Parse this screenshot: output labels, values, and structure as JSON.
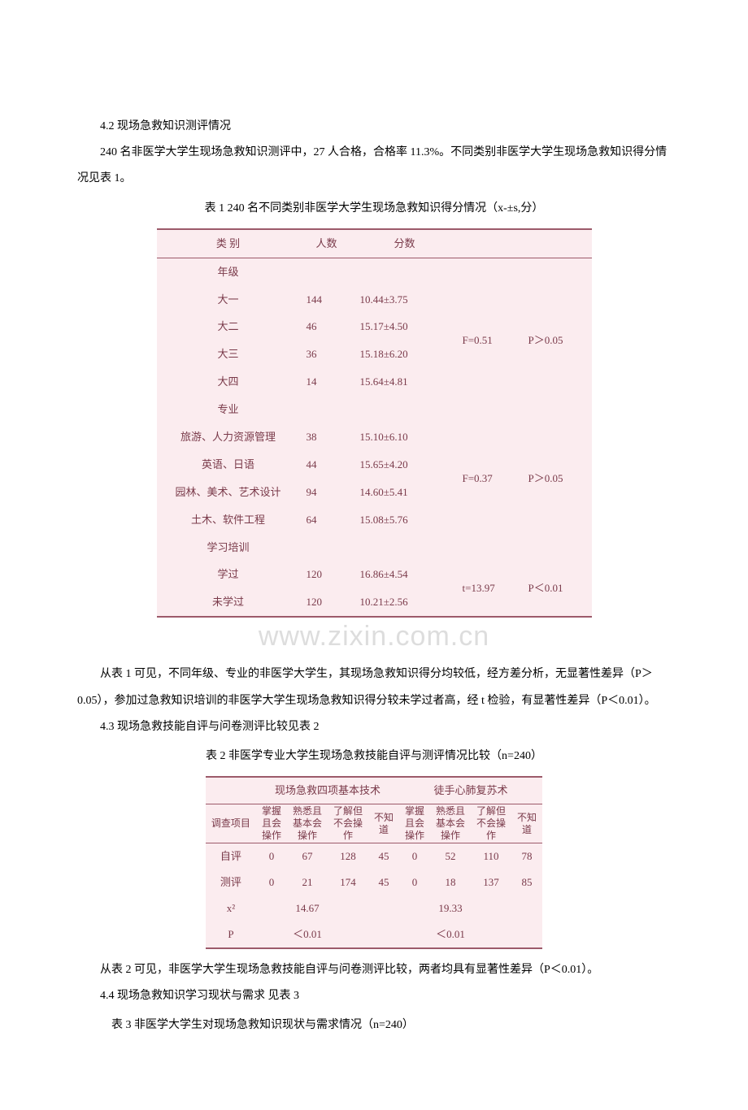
{
  "section42": {
    "heading": "4.2 现场急救知识测评情况",
    "para1": "240 名非医学大学生现场急救知识测评中，27 人合格，合格率 11.3%。不同类别非医学大学生现场急救知识得分情况见表 1。",
    "table1_caption": "表 1  240 名不同类别非医学大学生现场急救知识得分情况（x-±s,分）",
    "table1": {
      "header": {
        "cat": "类  别",
        "count": "人数",
        "score": "分数"
      },
      "groups": [
        {
          "name": "年级",
          "rows": [
            {
              "label": "大一",
              "n": "144",
              "score": "10.44±3.75"
            },
            {
              "label": "大二",
              "n": "46",
              "score": "15.17±4.50"
            },
            {
              "label": "大三",
              "n": "36",
              "score": "15.18±6.20"
            },
            {
              "label": "大四",
              "n": "14",
              "score": "15.64±4.81"
            }
          ],
          "stat": "F=0.51",
          "p": "P＞0.05"
        },
        {
          "name": "专业",
          "rows": [
            {
              "label": "旅游、人力资源管理",
              "n": "38",
              "score": "15.10±6.10"
            },
            {
              "label": "英语、日语",
              "n": "44",
              "score": "15.65±4.20"
            },
            {
              "label": "园林、美术、艺术设计",
              "n": "94",
              "score": "14.60±5.41"
            },
            {
              "label": "土木、软件工程",
              "n": "64",
              "score": "15.08±5.76"
            }
          ],
          "stat": "F=0.37",
          "p": "P＞0.05"
        },
        {
          "name": "学习培训",
          "rows": [
            {
              "label": "学过",
              "n": "120",
              "score": "16.86±4.54"
            },
            {
              "label": "未学过",
              "n": "120",
              "score": "10.21±2.56"
            }
          ],
          "stat": "t=13.97",
          "p": "P＜0.01"
        }
      ]
    },
    "watermark": "www.zixin.com.cn",
    "para_after_t1": "从表 1 可见，不同年级、专业的非医学大学生，其现场急救知识得分均较低，经方差分析，无显著性差异（P＞0.05），参加过急救知识培训的非医学大学生现场急救知识得分较未学过者高，经 t 检验，有显著性差异（P＜0.01）。"
  },
  "section43": {
    "heading": "4.3 现场急救技能自评与问卷测评比较见表 2",
    "table2_caption": "表 2  非医学专业大学生现场急救技能自评与测评情况比较（n=240）",
    "table2": {
      "top_headers": {
        "left": "现场急救四项基本技术",
        "right": "徒手心肺复苏术"
      },
      "col0": "调查项目",
      "sub_cols": {
        "c1": "掌握且会操作",
        "c2": "熟悉且基本会操作",
        "c3": "了解但不会操作",
        "c4": "不知道",
        "c5": "掌握且会操作",
        "c6": "熟悉且基本会操作",
        "c7": "了解但不会操作",
        "c8": "不知道"
      },
      "rows": [
        {
          "label": "自评",
          "v": [
            "0",
            "67",
            "128",
            "45",
            "0",
            "52",
            "110",
            "78"
          ]
        },
        {
          "label": "测评",
          "v": [
            "0",
            "21",
            "174",
            "45",
            "0",
            "18",
            "137",
            "85"
          ]
        }
      ],
      "x2_label": "x²",
      "x2_left": "14.67",
      "x2_right": "19.33",
      "p_label": "P",
      "p_left": "＜0.01",
      "p_right": "＜0.01"
    },
    "para_after_t2": "从表 2 可见，非医学大学生现场急救技能自评与问卷测评比较，两者均具有显著性差异（P＜0.01）。"
  },
  "section44": {
    "heading": "4.4 现场急救知识学习现状与需求  见表 3",
    "table3_caption": "表 3   非医学大学生对现场急救知识现状与需求情况（n=240）"
  }
}
